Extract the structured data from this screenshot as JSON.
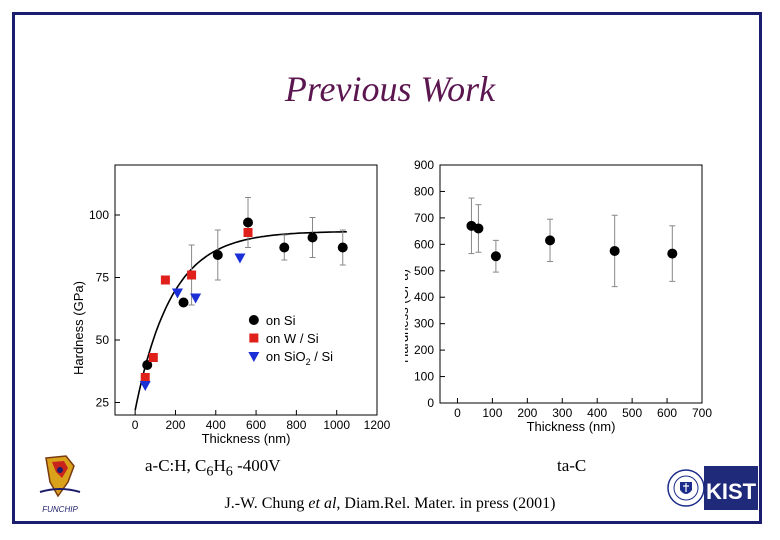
{
  "slide": {
    "title": "Previous Work",
    "caption_left": {
      "pre": "a-C:H, C",
      "sub1": "6",
      "mid": "H",
      "sub2": "6",
      "post": " -400V"
    },
    "caption_right": "ta-C",
    "citation": {
      "pre": "J.-W. Chung ",
      "em": "et al",
      "post": ", Diam.Rel. Mater. in press (2001)"
    },
    "logos": {
      "left_text": "FUNCHIP",
      "right_text": "KIST"
    }
  },
  "chart_data": [
    {
      "type": "scatter",
      "title": "",
      "xlabel": "Thickness (nm)",
      "ylabel": "Hardness (GPa)",
      "xlim": [
        -100,
        1200
      ],
      "ylim": [
        20,
        120
      ],
      "xticks": [
        0,
        200,
        400,
        600,
        800,
        1000,
        1200
      ],
      "yticks": [
        25,
        50,
        75,
        100
      ],
      "legend": [
        "on Si",
        "on W / Si",
        "on SiO2 / Si"
      ],
      "legend_sub": {
        "base": "on SiO",
        "sub": "2",
        "rest": " / Si"
      },
      "series": [
        {
          "name": "on Si",
          "marker": "circle",
          "color": "#000000",
          "x": [
            60,
            240,
            410,
            560,
            740,
            880,
            1030
          ],
          "y": [
            40,
            65,
            84,
            97,
            87,
            91,
            87
          ],
          "err": [
            0,
            0,
            10,
            10,
            5,
            8,
            7
          ]
        },
        {
          "name": "on W / Si",
          "marker": "square",
          "color": "#e0201a",
          "x": [
            50,
            90,
            150,
            280,
            560
          ],
          "y": [
            35,
            43,
            74,
            76,
            93
          ],
          "err": [
            0,
            0,
            0,
            12,
            0
          ]
        },
        {
          "name": "on SiO2 / Si",
          "marker": "triangle",
          "color": "#1a2fd6",
          "x": [
            50,
            210,
            300,
            520
          ],
          "y": [
            32,
            69,
            67,
            83
          ],
          "err": [
            0,
            0,
            0,
            0
          ]
        }
      ],
      "fit_curve": {
        "plateau": 93.5,
        "start_x": 0,
        "start_y": 22,
        "tau": 180
      }
    },
    {
      "type": "scatter",
      "title": "",
      "xlabel": "Thickness (nm)",
      "ylabel": "Hardness (GPa)",
      "xlim": [
        -50,
        700
      ],
      "ylim": [
        0,
        900
      ],
      "xticks": [
        0,
        100,
        200,
        300,
        400,
        500,
        600,
        700
      ],
      "yticks": [
        0,
        100,
        200,
        300,
        400,
        500,
        600,
        700,
        800,
        900
      ],
      "series": [
        {
          "name": "ta-C",
          "marker": "circle",
          "color": "#000000",
          "x": [
            40,
            60,
            110,
            265,
            450,
            615
          ],
          "y": [
            670,
            660,
            555,
            615,
            575,
            565
          ],
          "err": [
            105,
            90,
            60,
            80,
            135,
            105
          ]
        }
      ]
    }
  ]
}
